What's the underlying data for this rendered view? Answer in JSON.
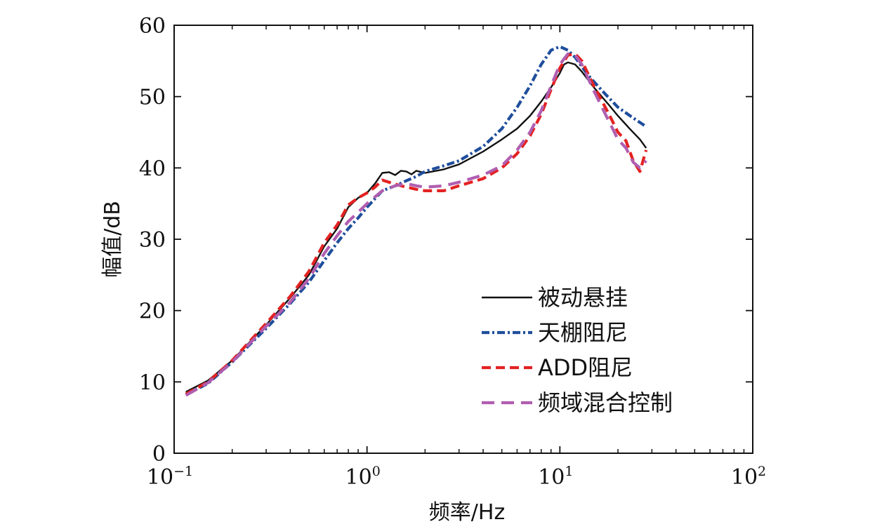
{
  "chart_data": {
    "type": "line",
    "xscale": "log",
    "xlabel": "频率/Hz",
    "ylabel": "幅值/dB",
    "xlim": [
      0.1,
      100
    ],
    "ylim": [
      0,
      60
    ],
    "x_ticks": [
      {
        "value": 0.1,
        "base": "10",
        "exp": "−1"
      },
      {
        "value": 1,
        "base": "10",
        "exp": "0"
      },
      {
        "value": 10,
        "base": "10",
        "exp": "1"
      },
      {
        "value": 100,
        "base": "10",
        "exp": "2"
      }
    ],
    "y_ticks": [
      0,
      10,
      20,
      30,
      40,
      50,
      60
    ],
    "grid": false,
    "legend_position": "lower-right",
    "series": [
      {
        "name": "被动悬挂",
        "color": "#111111",
        "style": "solid",
        "points": [
          [
            0.115,
            8.6
          ],
          [
            0.15,
            10.2
          ],
          [
            0.2,
            13
          ],
          [
            0.3,
            18
          ],
          [
            0.4,
            21.8
          ],
          [
            0.5,
            25
          ],
          [
            0.6,
            29
          ],
          [
            0.7,
            31.5
          ],
          [
            0.8,
            34.5
          ],
          [
            0.9,
            35.8
          ],
          [
            1.0,
            36.5
          ],
          [
            1.1,
            37.8
          ],
          [
            1.2,
            39.3
          ],
          [
            1.3,
            39.4
          ],
          [
            1.4,
            39.0
          ],
          [
            1.5,
            39.6
          ],
          [
            1.6,
            39.5
          ],
          [
            1.7,
            39.1
          ],
          [
            1.8,
            39.6
          ],
          [
            2.0,
            39.3
          ],
          [
            2.5,
            39.8
          ],
          [
            3.0,
            40.5
          ],
          [
            4.0,
            42.3
          ],
          [
            5.0,
            44.0
          ],
          [
            6.0,
            45.5
          ],
          [
            7.0,
            47.3
          ],
          [
            8.0,
            49.3
          ],
          [
            9.0,
            51.3
          ],
          [
            10.0,
            53.3
          ],
          [
            10.5,
            54.5
          ],
          [
            11.0,
            54.8
          ],
          [
            12.0,
            54.5
          ],
          [
            13.0,
            53.5
          ],
          [
            15.0,
            51.3
          ],
          [
            18.0,
            48.8
          ],
          [
            20.0,
            47.3
          ],
          [
            23.0,
            45.5
          ],
          [
            26.0,
            44.0
          ],
          [
            28.0,
            42.8
          ]
        ]
      },
      {
        "name": "天棚阻尼",
        "color": "#1f4e9c",
        "style": "dashdot",
        "points": [
          [
            0.115,
            8.2
          ],
          [
            0.15,
            9.8
          ],
          [
            0.2,
            12.8
          ],
          [
            0.3,
            17.5
          ],
          [
            0.4,
            21.0
          ],
          [
            0.5,
            24.0
          ],
          [
            0.6,
            27.0
          ],
          [
            0.7,
            29.5
          ],
          [
            0.8,
            31.5
          ],
          [
            0.9,
            33.0
          ],
          [
            1.0,
            34.5
          ],
          [
            1.2,
            36.8
          ],
          [
            1.4,
            37.5
          ],
          [
            1.6,
            38.2
          ],
          [
            1.8,
            38.8
          ],
          [
            2.0,
            39.5
          ],
          [
            2.5,
            40.3
          ],
          [
            3.0,
            41.0
          ],
          [
            4.0,
            43.0
          ],
          [
            5.0,
            45.5
          ],
          [
            6.0,
            48.5
          ],
          [
            7.0,
            51.5
          ],
          [
            8.0,
            54.5
          ],
          [
            9.0,
            56.5
          ],
          [
            10.0,
            57.0
          ],
          [
            11.0,
            56.5
          ],
          [
            12.0,
            55.5
          ],
          [
            14.0,
            53.0
          ],
          [
            17.0,
            50.5
          ],
          [
            20.0,
            48.5
          ],
          [
            24.0,
            47.0
          ],
          [
            28.0,
            45.8
          ]
        ]
      },
      {
        "name": "ADD阻尼",
        "color": "#e32222",
        "style": "dash",
        "points": [
          [
            0.115,
            8.3
          ],
          [
            0.15,
            10.0
          ],
          [
            0.2,
            13.0
          ],
          [
            0.3,
            18.2
          ],
          [
            0.4,
            22.0
          ],
          [
            0.5,
            25.5
          ],
          [
            0.6,
            29.5
          ],
          [
            0.7,
            32.0
          ],
          [
            0.8,
            34.8
          ],
          [
            0.9,
            35.8
          ],
          [
            1.0,
            36.5
          ],
          [
            1.1,
            37.3
          ],
          [
            1.2,
            38.3
          ],
          [
            1.3,
            38.0
          ],
          [
            1.5,
            37.5
          ],
          [
            1.8,
            37.0
          ],
          [
            2.0,
            36.8
          ],
          [
            2.5,
            36.8
          ],
          [
            3.0,
            37.5
          ],
          [
            4.0,
            38.5
          ],
          [
            5.0,
            40.0
          ],
          [
            6.0,
            42.0
          ],
          [
            7.0,
            44.5
          ],
          [
            8.0,
            47.5
          ],
          [
            9.0,
            51.0
          ],
          [
            10.0,
            54.0
          ],
          [
            11.0,
            55.8
          ],
          [
            12.0,
            56.0
          ],
          [
            13.0,
            55.0
          ],
          [
            15.0,
            51.5
          ],
          [
            18.0,
            47.5
          ],
          [
            20.0,
            45.0
          ],
          [
            22.0,
            43.8
          ],
          [
            24.0,
            41.0
          ],
          [
            26.0,
            39.5
          ],
          [
            28.0,
            42.5
          ]
        ]
      },
      {
        "name": "频域混合控制",
        "color": "#b05eb0",
        "style": "longdash",
        "points": [
          [
            0.115,
            8.1
          ],
          [
            0.15,
            9.9
          ],
          [
            0.2,
            12.8
          ],
          [
            0.3,
            17.8
          ],
          [
            0.4,
            21.2
          ],
          [
            0.5,
            24.5
          ],
          [
            0.6,
            28.0
          ],
          [
            0.7,
            30.5
          ],
          [
            0.8,
            32.5
          ],
          [
            0.9,
            33.8
          ],
          [
            1.0,
            35.0
          ],
          [
            1.2,
            36.8
          ],
          [
            1.4,
            37.5
          ],
          [
            1.6,
            37.8
          ],
          [
            1.8,
            37.5
          ],
          [
            2.0,
            37.3
          ],
          [
            2.5,
            37.5
          ],
          [
            3.0,
            38.0
          ],
          [
            4.0,
            39.0
          ],
          [
            5.0,
            40.3
          ],
          [
            6.0,
            42.5
          ],
          [
            7.0,
            45.0
          ],
          [
            8.0,
            48.0
          ],
          [
            9.0,
            51.5
          ],
          [
            10.0,
            54.5
          ],
          [
            11.0,
            56.0
          ],
          [
            12.0,
            55.8
          ],
          [
            13.0,
            54.5
          ],
          [
            15.0,
            50.8
          ],
          [
            18.0,
            46.5
          ],
          [
            20.0,
            44.0
          ],
          [
            22.0,
            42.8
          ],
          [
            24.0,
            40.8
          ],
          [
            26.0,
            40.0
          ],
          [
            28.0,
            41.0
          ]
        ]
      }
    ]
  }
}
